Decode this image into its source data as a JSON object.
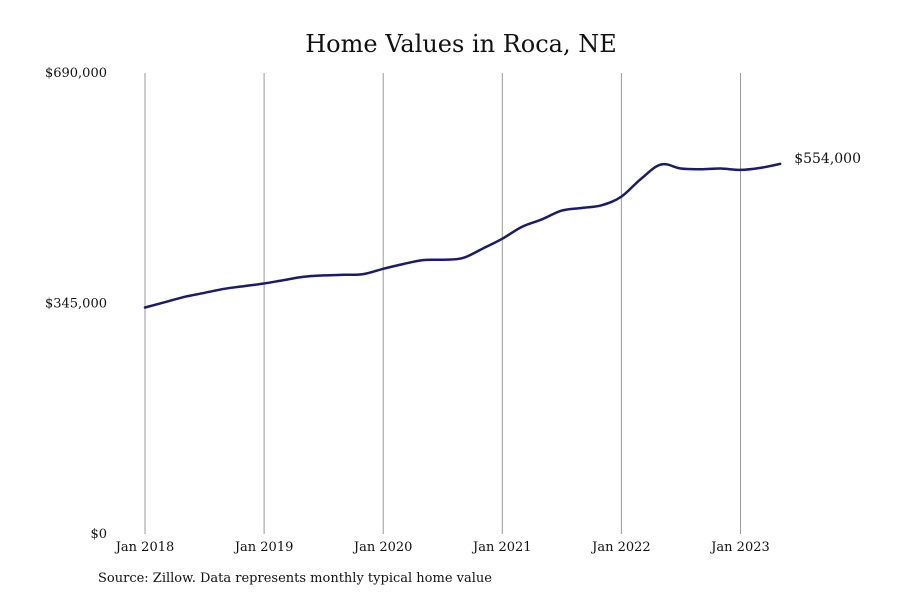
{
  "chart_data": {
    "type": "line",
    "title": "Home Values in Roca, NE",
    "xlabel": "",
    "ylabel": "",
    "ylim": [
      0,
      690000
    ],
    "xlim": [
      "2018-01",
      "2023-06"
    ],
    "yticks": [
      {
        "value": 690000,
        "label": "$690,000"
      },
      {
        "value": 345000,
        "label": "$345,000"
      },
      {
        "value": 0,
        "label": "$0"
      }
    ],
    "xticks": [
      {
        "value": "2018-01",
        "label": "Jan 2018"
      },
      {
        "value": "2019-01",
        "label": "Jan 2019"
      },
      {
        "value": "2020-01",
        "label": "Jan 2020"
      },
      {
        "value": "2021-01",
        "label": "Jan 2021"
      },
      {
        "value": "2022-01",
        "label": "Jan 2022"
      },
      {
        "value": "2023-01",
        "label": "Jan 2023"
      }
    ],
    "vertical_grid": true,
    "horizontal_grid": false,
    "line_color": "#1a1a6e",
    "end_label": "$554,000",
    "series": [
      {
        "points": [
          {
            "x": "2018-01",
            "y": 339000
          },
          {
            "x": "2018-03",
            "y": 347000
          },
          {
            "x": "2018-05",
            "y": 355000
          },
          {
            "x": "2018-07",
            "y": 361000
          },
          {
            "x": "2018-09",
            "y": 367000
          },
          {
            "x": "2018-11",
            "y": 371000
          },
          {
            "x": "2019-01",
            "y": 375000
          },
          {
            "x": "2019-03",
            "y": 380000
          },
          {
            "x": "2019-05",
            "y": 385000
          },
          {
            "x": "2019-07",
            "y": 387000
          },
          {
            "x": "2019-09",
            "y": 388000
          },
          {
            "x": "2019-11",
            "y": 389000
          },
          {
            "x": "2020-01",
            "y": 397000
          },
          {
            "x": "2020-03",
            "y": 404000
          },
          {
            "x": "2020-05",
            "y": 410000
          },
          {
            "x": "2020-07",
            "y": 410500
          },
          {
            "x": "2020-09",
            "y": 413000
          },
          {
            "x": "2020-11",
            "y": 427000
          },
          {
            "x": "2021-01",
            "y": 442000
          },
          {
            "x": "2021-03",
            "y": 460000
          },
          {
            "x": "2021-05",
            "y": 471000
          },
          {
            "x": "2021-07",
            "y": 484000
          },
          {
            "x": "2021-09",
            "y": 488000
          },
          {
            "x": "2021-11",
            "y": 492000
          },
          {
            "x": "2022-01",
            "y": 505000
          },
          {
            "x": "2022-03",
            "y": 532000
          },
          {
            "x": "2022-05",
            "y": 553000
          },
          {
            "x": "2022-07",
            "y": 547000
          },
          {
            "x": "2022-09",
            "y": 546000
          },
          {
            "x": "2022-11",
            "y": 547000
          },
          {
            "x": "2023-01",
            "y": 545000
          },
          {
            "x": "2023-03",
            "y": 548000
          },
          {
            "x": "2023-05",
            "y": 554000
          }
        ]
      }
    ]
  },
  "footer": {
    "source": "Source: Zillow. Data represents monthly typical home value"
  }
}
